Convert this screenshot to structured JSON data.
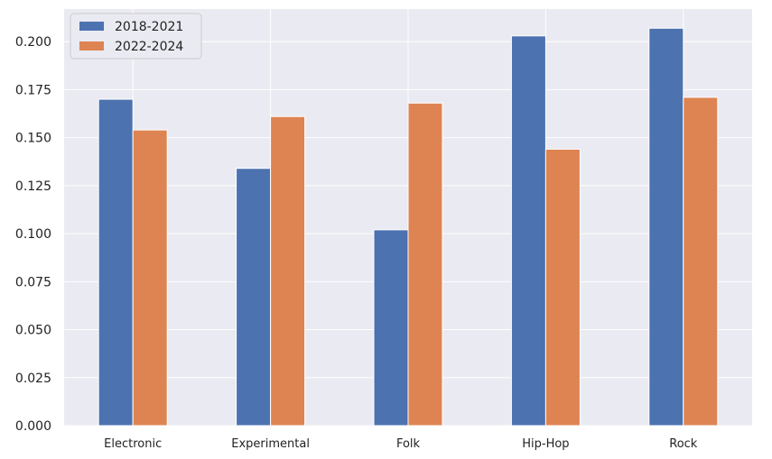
{
  "chart_data": {
    "type": "bar",
    "title": "",
    "xlabel": "",
    "ylabel": "",
    "categories": [
      "Electronic",
      "Experimental",
      "Folk",
      "Hip-Hop",
      "Rock"
    ],
    "series": [
      {
        "name": "2018-2021",
        "values": [
          0.17,
          0.134,
          0.102,
          0.203,
          0.207
        ],
        "color": "#4c72b0"
      },
      {
        "name": "2022-2024",
        "values": [
          0.154,
          0.161,
          0.168,
          0.144,
          0.171
        ],
        "color": "#dd8452"
      }
    ],
    "ylim": [
      0,
      0.217
    ],
    "yticks": [
      "0.000",
      "0.025",
      "0.050",
      "0.075",
      "0.100",
      "0.125",
      "0.150",
      "0.175",
      "0.200"
    ],
    "grid": true,
    "legend_position": "top-left",
    "background_color": "#eaeaf2",
    "grid_color": "#ffffff"
  }
}
